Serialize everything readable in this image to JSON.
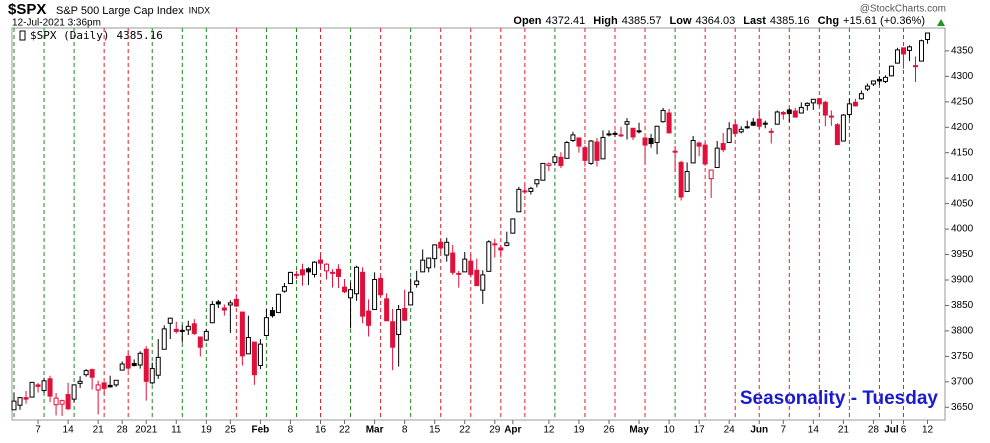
{
  "header": {
    "symbol": "$SPX",
    "name": "S&P 500 Large Cap Index",
    "exchange": "INDX",
    "timestamp": "12-Jul-2021 3:36pm",
    "open_label": "Open",
    "high_label": "High",
    "low_label": "Low",
    "last_label": "Last",
    "change_label": "Chg",
    "change": "+15.61 (+0.36%)",
    "watermark": "@StockCharts.com"
  },
  "chart_data": {
    "type": "candlestick",
    "annotation": "Seasonality - Tuesday",
    "categories": [
      null,
      null,
      null,
      null,
      "7",
      null,
      null,
      null,
      null,
      "14",
      null,
      null,
      null,
      null,
      "21",
      null,
      null,
      null,
      "28",
      null,
      null,
      null,
      "2021",
      null,
      null,
      null,
      null,
      "11",
      null,
      null,
      null,
      null,
      "19",
      null,
      null,
      null,
      "25",
      null,
      null,
      null,
      null,
      "Feb",
      null,
      null,
      null,
      null,
      "8",
      null,
      null,
      null,
      null,
      "16",
      null,
      null,
      null,
      "22",
      null,
      null,
      null,
      null,
      "Mar",
      null,
      null,
      null,
      null,
      "8",
      null,
      null,
      null,
      null,
      "15",
      null,
      null,
      null,
      null,
      "22",
      null,
      null,
      null,
      null,
      "29",
      null,
      null,
      "Apr",
      null,
      null,
      null,
      null,
      null,
      "12",
      null,
      null,
      null,
      null,
      "19",
      null,
      null,
      null,
      null,
      "26",
      null,
      null,
      null,
      null,
      "May",
      null,
      null,
      null,
      null,
      "10",
      null,
      null,
      null,
      null,
      "17",
      null,
      null,
      null,
      null,
      "24",
      null,
      null,
      null,
      null,
      "Jun",
      null,
      null,
      null,
      "7",
      null,
      null,
      null,
      null,
      "14",
      null,
      null,
      null,
      null,
      "21",
      null,
      null,
      null,
      null,
      "28",
      null,
      null,
      "Jul",
      null,
      "6",
      null,
      null,
      null,
      "12"
    ],
    "series": [
      {
        "name": "$SPX (Daily)",
        "open": [
          3645,
          3654,
          3669,
          3670,
          3694,
          3683,
          3706,
          3655,
          3656,
          3675,
          3666,
          3697,
          3714,
          3724,
          3684,
          3698,
          3693,
          3694,
          3723,
          3750,
          3736,
          3733,
          3764,
          3698,
          3713,
          3764,
          3815,
          3803,
          3801,
          3802,
          3814,
          3788,
          3782,
          3816,
          3857,
          3845,
          3851,
          3862,
          3837,
          3755,
          3778,
          3732,
          3791,
          3840,
          3836,
          3878,
          3893,
          3911,
          3920,
          3922,
          3911,
          3939,
          3918,
          3915,
          3921,
          3886,
          3865,
          3873,
          3915,
          3839,
          3842,
          3903,
          3863,
          3818,
          3793,
          3844,
          3851,
          3891,
          3916,
          3924,
          3942,
          3974,
          3949,
          3953,
          3913,
          3916,
          3937,
          3919,
          3880,
          3917,
          3969,
          3963,
          3968,
          3992,
          4034,
          4075,
          4074,
          4089,
          4096,
          4125,
          4131,
          4141,
          4139,
          4174,
          4179,
          4160,
          4129,
          4171,
          4138,
          4185,
          4188,
          4185,
          4206,
          4198,
          4191,
          4179,
          4178,
          4170,
          4211,
          4228,
          4151,
          4131,
          4074,
          4130,
          4169,
          4165,
          4099,
          4121,
          4168,
          4170,
          4205,
          4191,
          4201,
          4210,
          4216,
          4207,
          4191,
          4206,
          4229,
          4234,
          4232,
          4228,
          4243,
          4248,
          4256,
          4249,
          4220,
          4205,
          4173,
          4225,
          4249,
          4256,
          4275,
          4285,
          4294,
          4290,
          4301,
          4326,
          4356,
          4351,
          4321,
          4330,
          4372.41
        ],
        "high": [
          3678,
          3670,
          3682,
          3699,
          3698,
          3708,
          3712,
          3678,
          3665,
          3698,
          3695,
          3711,
          3725,
          3726,
          3702,
          3698,
          3712,
          3703,
          3740,
          3757,
          3744,
          3760,
          3770,
          3738,
          3784,
          3811,
          3826,
          3818,
          3811,
          3820,
          3823,
          3789,
          3804,
          3859,
          3861,
          3852,
          3860,
          3870,
          3837,
          3830,
          3778,
          3784,
          3843,
          3847,
          3872,
          3894,
          3916,
          3918,
          3932,
          3925,
          3937,
          3950,
          3933,
          3921,
          3931,
          3902,
          3895,
          3928,
          3925,
          3862,
          3915,
          3906,
          3874,
          3843,
          3851,
          3881,
          3903,
          3918,
          3960,
          3944,
          3970,
          3981,
          3983,
          3969,
          3918,
          3955,
          3950,
          3942,
          3919,
          3978,
          3981,
          3969,
          3995,
          4020,
          4083,
          4087,
          4083,
          4098,
          4129,
          4131,
          4148,
          4151,
          4173,
          4191,
          4180,
          4164,
          4175,
          4179,
          4194,
          4194,
          4193,
          4201,
          4218,
          4199,
          4209,
          4180,
          4187,
          4202,
          4238,
          4236,
          4163,
          4134,
          4131,
          4183,
          4172,
          4170,
          4117,
          4173,
          4189,
          4210,
          4214,
          4202,
          4213,
          4218,
          4234,
          4213,
          4198,
          4233,
          4232,
          4237,
          4238,
          4249,
          4249,
          4255,
          4258,
          4252,
          4233,
          4208,
          4226,
          4256,
          4256,
          4272,
          4286,
          4292,
          4300,
          4302,
          4321,
          4356,
          4356,
          4361,
          4339,
          4372,
          4385.57
        ],
        "low": [
          3645,
          3645,
          3657,
          3670,
          3679,
          3678,
          3660,
          3634,
          3633,
          3645,
          3660,
          3688,
          3710,
          3685,
          3636,
          3676,
          3689,
          3690,
          3723,
          3722,
          3730,
          3726,
          3663,
          3695,
          3706,
          3764,
          3784,
          3795,
          3777,
          3792,
          3792,
          3750,
          3780,
          3816,
          3845,
          3830,
          3796,
          3847,
          3732,
          3755,
          3694,
          3725,
          3791,
          3826,
          3836,
          3875,
          3893,
          3902,
          3889,
          3890,
          3905,
          3923,
          3901,
          3885,
          3884,
          3874,
          3805,
          3859,
          3815,
          3789,
          3842,
          3868,
          3819,
          3723,
          3730,
          3819,
          3851,
          3885,
          3916,
          3915,
          3924,
          3953,
          3936,
          3910,
          3885,
          3916,
          3905,
          3889,
          3853,
          3917,
          3944,
          3944,
          3966,
          3992,
          4034,
          4069,
          4068,
          4082,
          4096,
          4114,
          4125,
          4120,
          4139,
          4171,
          4150,
          4123,
          4126,
          4123,
          4138,
          4182,
          4181,
          4181,
          4176,
          4175,
          4188,
          4128,
          4160,
          4147,
          4209,
          4188,
          4112,
          4056,
          4074,
          4130,
          4143,
          4124,
          4061,
          4121,
          4151,
          4170,
          4182,
          4188,
          4197,
          4203,
          4197,
          4198,
          4168,
          4206,
          4215,
          4210,
          4219,
          4227,
          4233,
          4234,
          4242,
          4202,
          4203,
          4165,
          4173,
          4217,
          4241,
          4254,
          4271,
          4281,
          4283,
          4287,
          4300,
          4326,
          4315,
          4330,
          4289,
          4330,
          4364.03
        ],
        "close": [
          3662,
          3669,
          3666,
          3699,
          3691,
          3702,
          3672,
          3668,
          3663,
          3647,
          3694,
          3701,
          3722,
          3709,
          3694,
          3687,
          3690,
          3703,
          3735,
          3727,
          3732,
          3756,
          3701,
          3726,
          3748,
          3804,
          3825,
          3799,
          3801,
          3809,
          3795,
          3768,
          3799,
          3852,
          3853,
          3841,
          3855,
          3849,
          3751,
          3787,
          3714,
          3774,
          3826,
          3830,
          3872,
          3887,
          3915,
          3911,
          3910,
          3916,
          3935,
          3933,
          3931,
          3914,
          3907,
          3877,
          3881,
          3925,
          3829,
          3811,
          3901,
          3871,
          3820,
          3768,
          3842,
          3821,
          3876,
          3898,
          3939,
          3943,
          3969,
          3963,
          3974,
          3915,
          3913,
          3941,
          3911,
          3889,
          3910,
          3975,
          3971,
          3959,
          3973,
          4020,
          4078,
          4074,
          4080,
          4097,
          4129,
          4128,
          4142,
          4125,
          4170,
          4185,
          4163,
          4135,
          4173,
          4135,
          4180,
          4187,
          4187,
          4184,
          4211,
          4181,
          4193,
          4165,
          4168,
          4202,
          4233,
          4189,
          4153,
          4063,
          4113,
          4174,
          4163,
          4128,
          4116,
          4159,
          4156,
          4197,
          4188,
          4196,
          4201,
          4204,
          4202,
          4208,
          4192,
          4230,
          4226,
          4227,
          4220,
          4239,
          4247,
          4255,
          4246,
          4224,
          4222,
          4166,
          4224,
          4246,
          4242,
          4266,
          4281,
          4291,
          4291,
          4298,
          4320,
          4352,
          4344,
          4358,
          4320,
          4370,
          4385.16
        ]
      }
    ],
    "up_color": "#000000",
    "down_color": "#e0103a",
    "marker_lines": [
      0,
      5,
      10,
      15,
      19,
      23,
      28,
      32,
      37,
      42,
      47,
      51,
      56,
      61,
      66,
      71,
      76,
      81,
      85,
      90,
      95,
      100,
      105,
      110,
      115,
      120,
      124,
      129,
      134,
      139,
      144,
      148
    ],
    "marker_up_color": "#1a8a1a",
    "marker_down_color": "#e0202a",
    "ylim": [
      3625,
      4395
    ],
    "yticks": [
      3650,
      3700,
      3750,
      3800,
      3850,
      3900,
      3950,
      4000,
      4050,
      4100,
      4150,
      4200,
      4250,
      4300,
      4350
    ],
    "grid": false
  }
}
